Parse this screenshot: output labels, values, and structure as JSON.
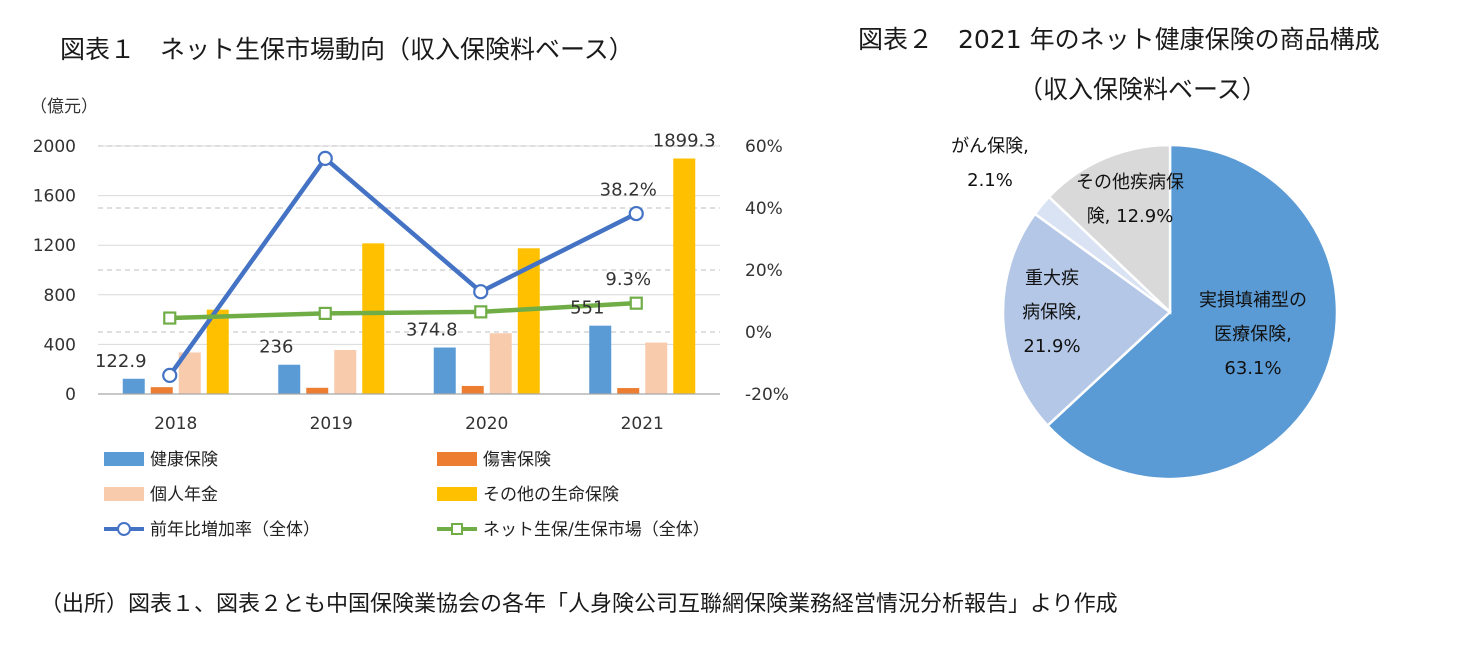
{
  "fig1": {
    "title": "図表１　ネット生保市場動向（収入保険料ベース）",
    "unit_label": "（億元）"
  },
  "fig2": {
    "title": "図表２　2021 年のネット健康保険の商品構成",
    "subtitle": "（収入保険料ベース）"
  },
  "source_note": "（出所）図表１、図表２とも中国保険業協会の各年「人身険公司互聯網保険業務経営情況分析報告」より作成",
  "chart_data": [
    {
      "type": "bar",
      "categories": [
        "2018",
        "2019",
        "2020",
        "2021"
      ],
      "ylim": [
        0,
        2000
      ],
      "yticks": [
        0,
        400,
        800,
        1200,
        1600,
        2000
      ],
      "y2lim": [
        -0.2,
        0.6
      ],
      "y2ticks": [
        "-20%",
        "0%",
        "20%",
        "40%",
        "60%"
      ],
      "grid": true,
      "legend_position": "bottom",
      "series": [
        {
          "name": "健康保険",
          "type": "bar",
          "axis": "left",
          "color": "#5b9bd5",
          "values": [
            122.9,
            236,
            374.8,
            551
          ],
          "labels": [
            "122.9",
            "236",
            "374.8",
            "551"
          ]
        },
        {
          "name": "傷害保険",
          "type": "bar",
          "axis": "left",
          "color": "#ed7d31",
          "values": [
            55,
            50,
            65,
            48
          ]
        },
        {
          "name": "個人年金",
          "type": "bar",
          "axis": "left",
          "color": "#f8cbad",
          "values": [
            335,
            355,
            490,
            415
          ]
        },
        {
          "name": "その他の生命保険",
          "type": "bar",
          "axis": "left",
          "color": "#ffc000",
          "values": [
            680,
            1215,
            1175,
            1899.3
          ],
          "labels": [
            "",
            "",
            "",
            "1899.3"
          ]
        },
        {
          "name": "前年比増加率（全体）",
          "type": "line",
          "axis": "right",
          "color": "#4472c4",
          "marker": "circle",
          "values": [
            -0.14,
            0.56,
            0.13,
            0.382
          ],
          "labels": [
            "",
            "",
            "",
            "38.2%"
          ]
        },
        {
          "name": "ネット生保/生保市場（全体）",
          "type": "line",
          "axis": "right",
          "color": "#70ad47",
          "marker": "square",
          "values": [
            0.045,
            0.06,
            0.065,
            0.093
          ],
          "labels": [
            "",
            "",
            "",
            "9.3%"
          ]
        }
      ]
    },
    {
      "type": "pie",
      "slices": [
        {
          "name": "実損填補型の医療保険",
          "value": 63.1,
          "label_lines": [
            "実損填補型の",
            "医療保険,",
            "63.1%"
          ],
          "color": "#5b9bd5"
        },
        {
          "name": "重大疾病保険",
          "value": 21.9,
          "label_lines": [
            "重大疾",
            "病保険,",
            "21.9%"
          ],
          "color": "#b4c7e7"
        },
        {
          "name": "がん保険",
          "value": 2.1,
          "label_lines": [
            "がん保険,",
            "2.1%"
          ],
          "color": "#dae3f3"
        },
        {
          "name": "その他疾病保険",
          "value": 12.9,
          "label_lines": [
            "その他疾病保",
            "険, 12.9%"
          ],
          "color": "#d9d9d9"
        }
      ]
    }
  ]
}
